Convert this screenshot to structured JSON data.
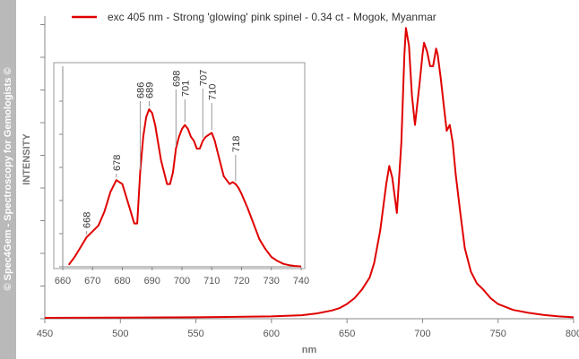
{
  "sidebar": {
    "text": "© Spec4Gem - Spectroscopy for Gemologists ©"
  },
  "chart_data": [
    {
      "type": "line",
      "title": "",
      "xlabel": "nm",
      "ylabel": "INTENSITY",
      "xlim": [
        450,
        800
      ],
      "x_ticks": [
        450,
        500,
        550,
        600,
        650,
        700,
        750,
        800
      ],
      "ylim": [
        0,
        1
      ],
      "grid": false,
      "legend_position": "top-left",
      "colors": {
        "series": "#e00000",
        "axis": "#888888",
        "sidebar": "#b9b9b9"
      },
      "series": [
        {
          "name": "exc 405 nm - Strong 'glowing' pink spinel - 0.34 ct - Mogok, Myanmar",
          "x": [
            450,
            500,
            550,
            600,
            620,
            630,
            640,
            645,
            650,
            655,
            660,
            665,
            668,
            672,
            676,
            678,
            680,
            683,
            686,
            688,
            689,
            691,
            693,
            695,
            698,
            700,
            701,
            703,
            705,
            707,
            709,
            710,
            712,
            714,
            716,
            718,
            720,
            722,
            725,
            728,
            732,
            736,
            740,
            745,
            750,
            760,
            770,
            780,
            790,
            800
          ],
          "y": [
            0.003,
            0.004,
            0.005,
            0.008,
            0.012,
            0.018,
            0.028,
            0.036,
            0.05,
            0.07,
            0.1,
            0.14,
            0.19,
            0.3,
            0.46,
            0.52,
            0.48,
            0.36,
            0.6,
            0.9,
            0.99,
            0.93,
            0.76,
            0.66,
            0.8,
            0.9,
            0.94,
            0.91,
            0.86,
            0.86,
            0.92,
            0.9,
            0.82,
            0.73,
            0.64,
            0.66,
            0.6,
            0.49,
            0.36,
            0.24,
            0.16,
            0.12,
            0.1,
            0.07,
            0.05,
            0.03,
            0.02,
            0.013,
            0.008,
            0.005
          ]
        }
      ]
    },
    {
      "type": "line",
      "title": "",
      "xlabel": "",
      "ylabel": "",
      "xlim": [
        660,
        740
      ],
      "x_ticks": [
        660,
        670,
        680,
        690,
        700,
        710,
        720,
        730,
        740
      ],
      "ylim": [
        0,
        1
      ],
      "grid": false,
      "annotations": [
        "668",
        "678",
        "686",
        "689",
        "698",
        "701",
        "707",
        "710",
        "718"
      ],
      "series": [
        {
          "x": [
            662,
            664,
            666,
            668,
            670,
            672,
            674,
            676,
            678,
            680,
            682,
            684,
            685,
            686,
            687,
            688,
            689,
            690,
            691,
            693,
            695,
            696,
            697,
            698,
            699,
            700,
            701,
            702,
            703,
            704,
            705,
            706,
            707,
            708,
            709,
            710,
            711,
            712,
            714,
            716,
            717,
            718,
            719,
            720,
            722,
            724,
            726,
            728,
            730,
            732,
            734,
            736,
            738,
            740
          ],
          "y": [
            0.01,
            0.05,
            0.1,
            0.15,
            0.18,
            0.21,
            0.28,
            0.38,
            0.44,
            0.42,
            0.32,
            0.22,
            0.22,
            0.48,
            0.66,
            0.76,
            0.8,
            0.78,
            0.72,
            0.54,
            0.42,
            0.42,
            0.48,
            0.6,
            0.66,
            0.7,
            0.72,
            0.7,
            0.66,
            0.64,
            0.6,
            0.6,
            0.64,
            0.66,
            0.67,
            0.68,
            0.64,
            0.58,
            0.46,
            0.42,
            0.43,
            0.42,
            0.4,
            0.37,
            0.3,
            0.22,
            0.14,
            0.09,
            0.05,
            0.03,
            0.015,
            0.008,
            0.004,
            0.002
          ]
        }
      ]
    }
  ]
}
